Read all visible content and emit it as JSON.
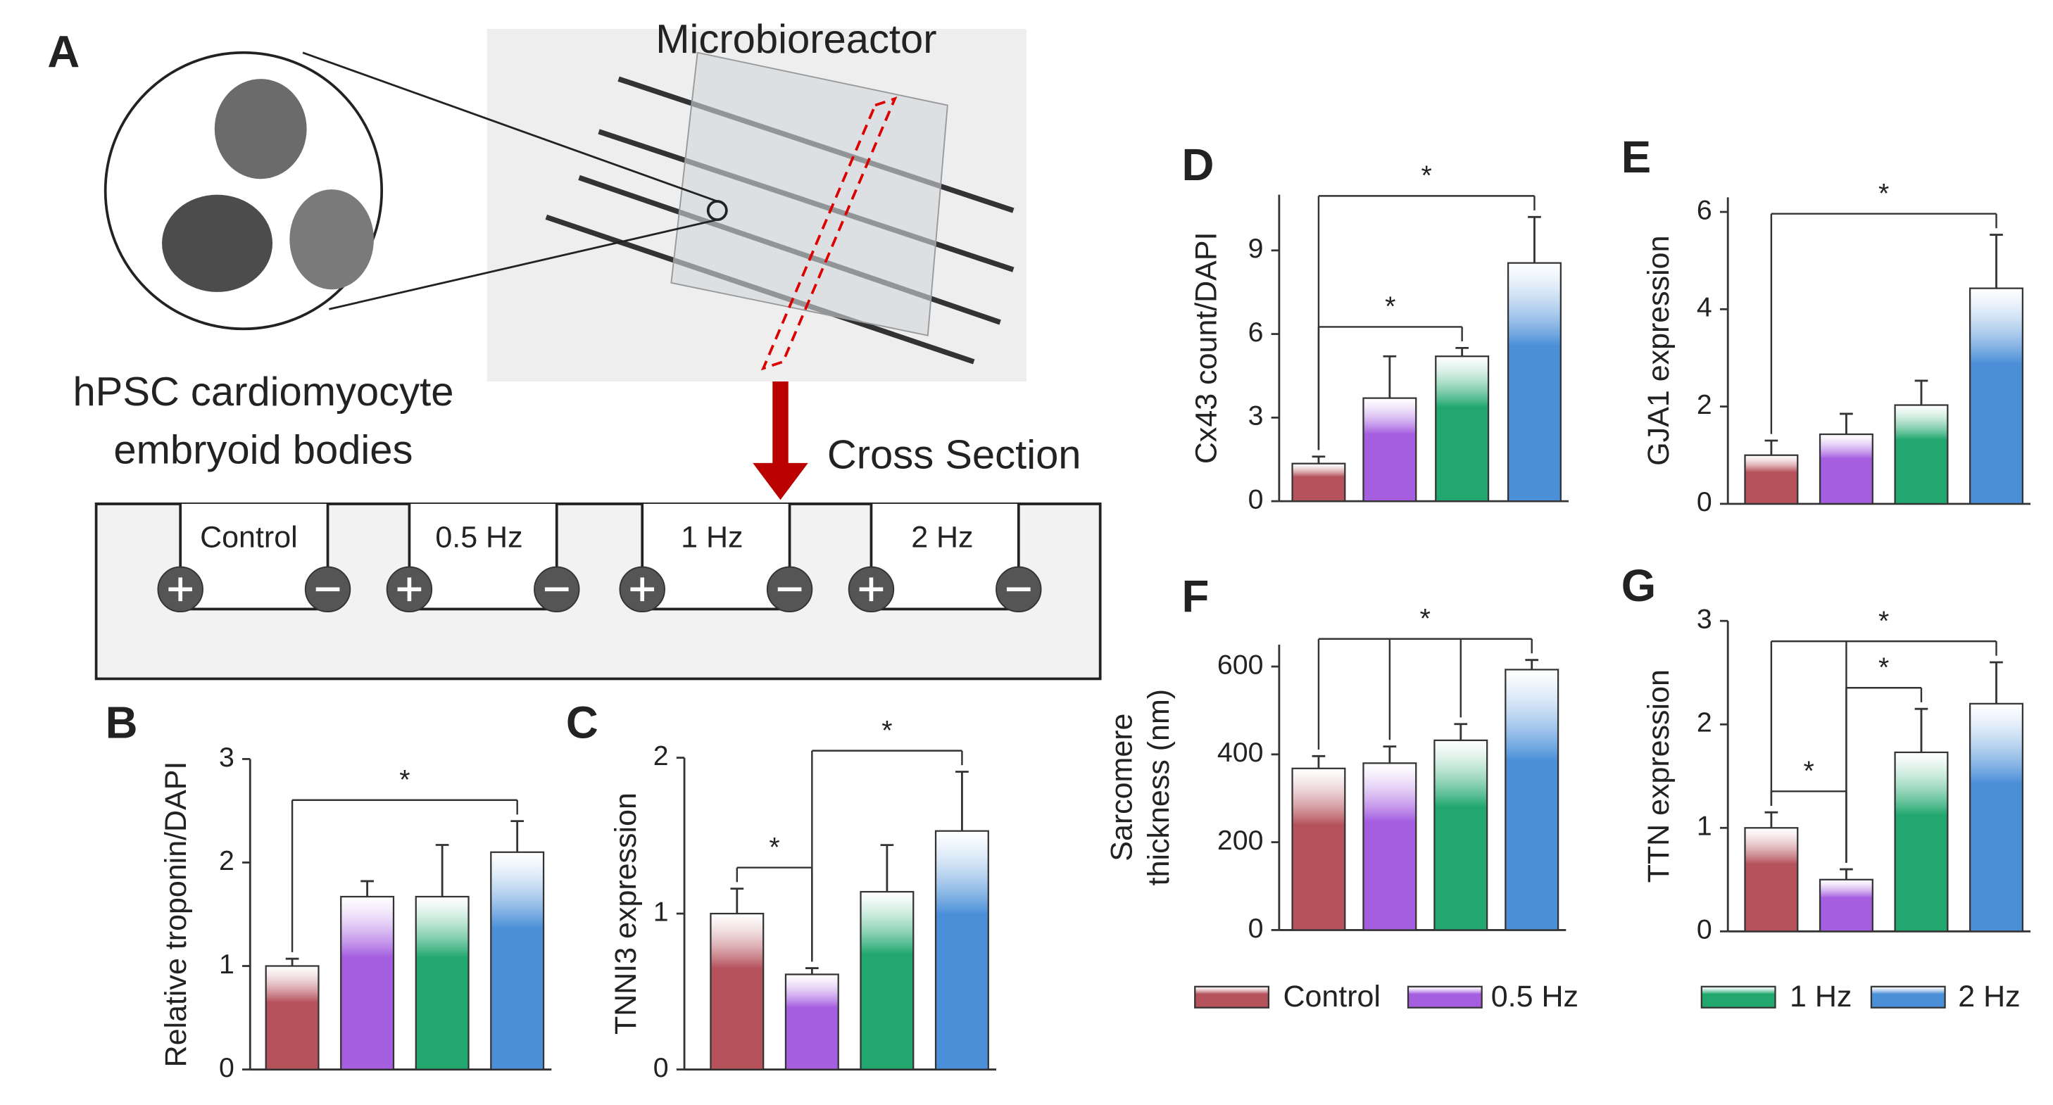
{
  "panel_a": {
    "label": "A",
    "device": "Microbioreactor",
    "cells": [
      "hPSC cardiomyocyte",
      "embryoid bodies"
    ],
    "section": "Cross Section",
    "channels": [
      "Control",
      "0.5 Hz",
      "1 Hz",
      "2 Hz"
    ]
  },
  "legend": [
    {
      "name": "Control",
      "color": "#b5525c"
    },
    {
      "name": "0.5 Hz",
      "color": "#a55ee0"
    },
    {
      "name": "1 Hz",
      "color": "#22a86f"
    },
    {
      "name": "2 Hz",
      "color": "#4a8fd8"
    }
  ],
  "chart_data": [
    {
      "type": "bar",
      "label": "B",
      "ylabel": [
        "Relative troponin/DAPI"
      ],
      "values": [
        1.0,
        1.67,
        1.67,
        2.1
      ],
      "errors": [
        0.07,
        0.15,
        0.5,
        0.3
      ],
      "ylim": [
        0,
        3
      ],
      "yticks": [
        0,
        1,
        2,
        3
      ],
      "brackets": [
        {
          "bars": [
            0,
            3
          ],
          "label": "*"
        }
      ]
    },
    {
      "type": "bar",
      "label": "C",
      "ylabel": [
        "TNNI3 expression"
      ],
      "values": [
        1.0,
        0.61,
        1.14,
        1.53
      ],
      "errors": [
        0.16,
        0.04,
        0.3,
        0.38
      ],
      "ylim": [
        0,
        2
      ],
      "yticks": [
        0,
        1,
        2
      ],
      "brackets": [
        {
          "bars": [
            0,
            1
          ],
          "label": "*"
        },
        {
          "bars": [
            1,
            3
          ],
          "label": "*"
        }
      ]
    },
    {
      "type": "bar",
      "label": "D",
      "ylabel": [
        "Cx43 count/DAPI"
      ],
      "values": [
        1.35,
        3.7,
        5.2,
        8.55
      ],
      "errors": [
        0.25,
        1.5,
        0.3,
        1.65
      ],
      "ylim": [
        0,
        11
      ],
      "yticks": [
        0,
        3,
        6,
        9
      ],
      "brackets": [
        {
          "bars": [
            0,
            2
          ],
          "label": "*"
        },
        {
          "bars": [
            0,
            3
          ],
          "label": "*"
        }
      ]
    },
    {
      "type": "bar",
      "label": "E",
      "ylabel": [
        "GJA1 expression"
      ],
      "values": [
        1.0,
        1.43,
        2.03,
        4.43
      ],
      "errors": [
        0.3,
        0.42,
        0.5,
        1.1
      ],
      "ylim": [
        0,
        6.3
      ],
      "yticks": [
        0,
        2,
        4,
        6
      ],
      "brackets": [
        {
          "bars": [
            0,
            3
          ],
          "label": "*"
        }
      ]
    },
    {
      "type": "bar",
      "label": "F",
      "ylabel": [
        "Sarcomere",
        "thickness (nm)"
      ],
      "values": [
        368,
        380,
        432,
        593
      ],
      "errors": [
        28,
        38,
        37,
        22
      ],
      "ylim": [
        0,
        650
      ],
      "yticks": [
        0,
        200,
        400,
        600
      ],
      "brackets": [
        {
          "bars": [
            0,
            1,
            2,
            3
          ],
          "label": "*"
        }
      ]
    },
    {
      "type": "bar",
      "label": "G",
      "ylabel": [
        "TTN expression"
      ],
      "values": [
        1.0,
        0.5,
        1.73,
        2.2
      ],
      "errors": [
        0.15,
        0.1,
        0.42,
        0.4
      ],
      "ylim": [
        0,
        3
      ],
      "yticks": [
        0,
        1,
        2,
        3
      ],
      "brackets": [
        {
          "bars": [
            0,
            1
          ],
          "label": "*"
        },
        {
          "bars": [
            1,
            2
          ],
          "label": "*"
        },
        {
          "bars": [
            0,
            1,
            3
          ],
          "label": "*"
        }
      ]
    }
  ]
}
